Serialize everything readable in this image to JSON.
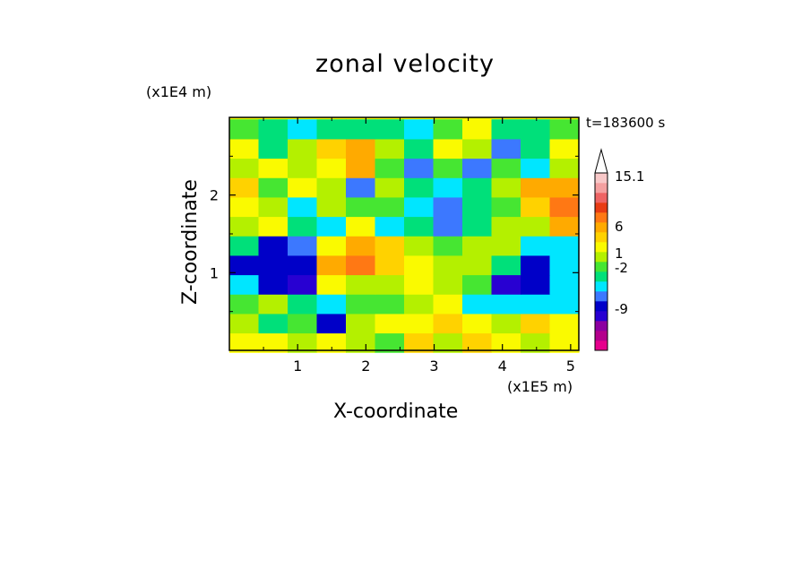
{
  "chart_data": {
    "type": "heatmap",
    "title": "zonal velocity",
    "xlabel": "X-coordinate",
    "ylabel": "Z-coordinate",
    "x_unit_label": "(x1E5 m)",
    "z_unit_label": "(x1E4 m)",
    "time_label": "t=183600 s",
    "x_ticks": [
      "1",
      "2",
      "3",
      "4",
      "5"
    ],
    "y_ticks": [
      "1",
      "2"
    ],
    "x_tick_values": [
      1,
      2,
      3,
      4,
      5
    ],
    "y_tick_values": [
      1,
      2
    ],
    "xlim": [
      0,
      5.12
    ],
    "ylim": [
      0,
      3.0
    ],
    "colorbar": {
      "labels": [
        "15.1",
        "6",
        "1",
        "-2",
        "-9"
      ],
      "colors": [
        "#e6008c",
        "#b4008c",
        "#8c00a0",
        "#2800d2",
        "#0000c8",
        "#3c78ff",
        "#00e6ff",
        "#00e07a",
        "#46e632",
        "#b4f000",
        "#fafa00",
        "#ffd200",
        "#ffaa00",
        "#ff7814",
        "#e83c14",
        "#ee6464",
        "#f4a0a0",
        "#f8c8c8"
      ],
      "extend_top": true
    },
    "bands": [
      {
        "z": 0.1,
        "values": [
          10,
          10,
          9,
          10,
          9,
          8,
          11,
          9,
          11,
          10,
          9,
          10
        ]
      },
      {
        "z": 0.35,
        "values": [
          9,
          7,
          8,
          4,
          9,
          10,
          10,
          11,
          10,
          9,
          11,
          10
        ]
      },
      {
        "z": 0.6,
        "values": [
          8,
          9,
          7,
          6,
          8,
          8,
          9,
          10,
          6,
          6,
          6,
          6
        ]
      },
      {
        "z": 0.85,
        "values": [
          6,
          4,
          3,
          10,
          9,
          9,
          10,
          9,
          8,
          3,
          4,
          6
        ]
      },
      {
        "z": 1.1,
        "values": [
          4,
          4,
          4,
          12,
          13,
          11,
          10,
          9,
          9,
          7,
          4,
          6
        ]
      },
      {
        "z": 1.35,
        "values": [
          7,
          4,
          5,
          10,
          12,
          11,
          9,
          8,
          9,
          9,
          6,
          6
        ]
      },
      {
        "z": 1.6,
        "values": [
          9,
          10,
          7,
          6,
          10,
          6,
          7,
          5,
          7,
          9,
          9,
          12
        ]
      },
      {
        "z": 1.85,
        "values": [
          10,
          9,
          6,
          9,
          8,
          8,
          6,
          5,
          7,
          8,
          11,
          13
        ]
      },
      {
        "z": 2.1,
        "values": [
          11,
          8,
          10,
          9,
          5,
          9,
          7,
          6,
          7,
          9,
          12,
          12
        ]
      },
      {
        "z": 2.35,
        "values": [
          9,
          10,
          9,
          10,
          12,
          8,
          5,
          8,
          5,
          8,
          6,
          9
        ]
      },
      {
        "z": 2.6,
        "values": [
          10,
          7,
          9,
          11,
          12,
          9,
          7,
          10,
          9,
          5,
          7,
          10
        ]
      },
      {
        "z": 2.85,
        "values": [
          8,
          7,
          6,
          7,
          7,
          7,
          6,
          8,
          10,
          7,
          7,
          8
        ]
      }
    ]
  }
}
